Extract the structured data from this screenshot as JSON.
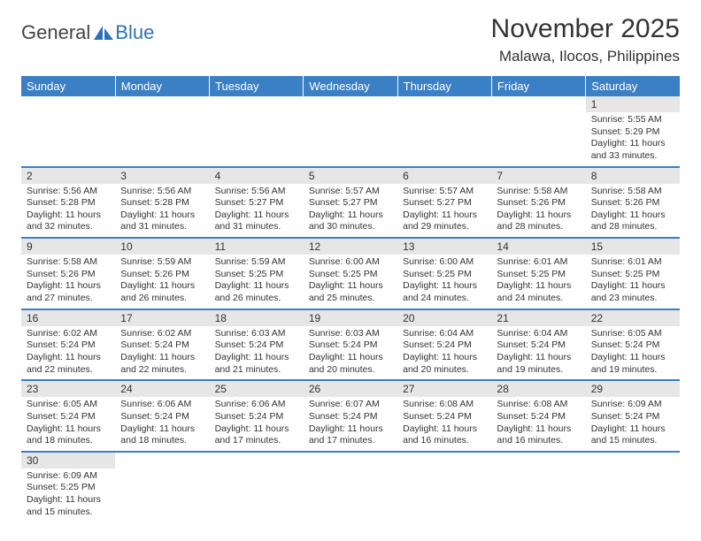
{
  "logo": {
    "general": "General",
    "blue": "Blue"
  },
  "title": "November 2025",
  "location": "Malawa, Ilocos, Philippines",
  "colors": {
    "header_bg": "#3b7fc4",
    "header_text": "#ffffff",
    "daynum_bg": "#e6e6e6",
    "border": "#3b7fc4",
    "body_text": "#333333",
    "logo_blue": "#2d72b8"
  },
  "weekdays": [
    "Sunday",
    "Monday",
    "Tuesday",
    "Wednesday",
    "Thursday",
    "Friday",
    "Saturday"
  ],
  "weeks": [
    [
      null,
      null,
      null,
      null,
      null,
      null,
      {
        "n": "1",
        "sr": "Sunrise: 5:55 AM",
        "ss": "Sunset: 5:29 PM",
        "dl1": "Daylight: 11 hours",
        "dl2": "and 33 minutes."
      }
    ],
    [
      {
        "n": "2",
        "sr": "Sunrise: 5:56 AM",
        "ss": "Sunset: 5:28 PM",
        "dl1": "Daylight: 11 hours",
        "dl2": "and 32 minutes."
      },
      {
        "n": "3",
        "sr": "Sunrise: 5:56 AM",
        "ss": "Sunset: 5:28 PM",
        "dl1": "Daylight: 11 hours",
        "dl2": "and 31 minutes."
      },
      {
        "n": "4",
        "sr": "Sunrise: 5:56 AM",
        "ss": "Sunset: 5:27 PM",
        "dl1": "Daylight: 11 hours",
        "dl2": "and 31 minutes."
      },
      {
        "n": "5",
        "sr": "Sunrise: 5:57 AM",
        "ss": "Sunset: 5:27 PM",
        "dl1": "Daylight: 11 hours",
        "dl2": "and 30 minutes."
      },
      {
        "n": "6",
        "sr": "Sunrise: 5:57 AM",
        "ss": "Sunset: 5:27 PM",
        "dl1": "Daylight: 11 hours",
        "dl2": "and 29 minutes."
      },
      {
        "n": "7",
        "sr": "Sunrise: 5:58 AM",
        "ss": "Sunset: 5:26 PM",
        "dl1": "Daylight: 11 hours",
        "dl2": "and 28 minutes."
      },
      {
        "n": "8",
        "sr": "Sunrise: 5:58 AM",
        "ss": "Sunset: 5:26 PM",
        "dl1": "Daylight: 11 hours",
        "dl2": "and 28 minutes."
      }
    ],
    [
      {
        "n": "9",
        "sr": "Sunrise: 5:58 AM",
        "ss": "Sunset: 5:26 PM",
        "dl1": "Daylight: 11 hours",
        "dl2": "and 27 minutes."
      },
      {
        "n": "10",
        "sr": "Sunrise: 5:59 AM",
        "ss": "Sunset: 5:26 PM",
        "dl1": "Daylight: 11 hours",
        "dl2": "and 26 minutes."
      },
      {
        "n": "11",
        "sr": "Sunrise: 5:59 AM",
        "ss": "Sunset: 5:25 PM",
        "dl1": "Daylight: 11 hours",
        "dl2": "and 26 minutes."
      },
      {
        "n": "12",
        "sr": "Sunrise: 6:00 AM",
        "ss": "Sunset: 5:25 PM",
        "dl1": "Daylight: 11 hours",
        "dl2": "and 25 minutes."
      },
      {
        "n": "13",
        "sr": "Sunrise: 6:00 AM",
        "ss": "Sunset: 5:25 PM",
        "dl1": "Daylight: 11 hours",
        "dl2": "and 24 minutes."
      },
      {
        "n": "14",
        "sr": "Sunrise: 6:01 AM",
        "ss": "Sunset: 5:25 PM",
        "dl1": "Daylight: 11 hours",
        "dl2": "and 24 minutes."
      },
      {
        "n": "15",
        "sr": "Sunrise: 6:01 AM",
        "ss": "Sunset: 5:25 PM",
        "dl1": "Daylight: 11 hours",
        "dl2": "and 23 minutes."
      }
    ],
    [
      {
        "n": "16",
        "sr": "Sunrise: 6:02 AM",
        "ss": "Sunset: 5:24 PM",
        "dl1": "Daylight: 11 hours",
        "dl2": "and 22 minutes."
      },
      {
        "n": "17",
        "sr": "Sunrise: 6:02 AM",
        "ss": "Sunset: 5:24 PM",
        "dl1": "Daylight: 11 hours",
        "dl2": "and 22 minutes."
      },
      {
        "n": "18",
        "sr": "Sunrise: 6:03 AM",
        "ss": "Sunset: 5:24 PM",
        "dl1": "Daylight: 11 hours",
        "dl2": "and 21 minutes."
      },
      {
        "n": "19",
        "sr": "Sunrise: 6:03 AM",
        "ss": "Sunset: 5:24 PM",
        "dl1": "Daylight: 11 hours",
        "dl2": "and 20 minutes."
      },
      {
        "n": "20",
        "sr": "Sunrise: 6:04 AM",
        "ss": "Sunset: 5:24 PM",
        "dl1": "Daylight: 11 hours",
        "dl2": "and 20 minutes."
      },
      {
        "n": "21",
        "sr": "Sunrise: 6:04 AM",
        "ss": "Sunset: 5:24 PM",
        "dl1": "Daylight: 11 hours",
        "dl2": "and 19 minutes."
      },
      {
        "n": "22",
        "sr": "Sunrise: 6:05 AM",
        "ss": "Sunset: 5:24 PM",
        "dl1": "Daylight: 11 hours",
        "dl2": "and 19 minutes."
      }
    ],
    [
      {
        "n": "23",
        "sr": "Sunrise: 6:05 AM",
        "ss": "Sunset: 5:24 PM",
        "dl1": "Daylight: 11 hours",
        "dl2": "and 18 minutes."
      },
      {
        "n": "24",
        "sr": "Sunrise: 6:06 AM",
        "ss": "Sunset: 5:24 PM",
        "dl1": "Daylight: 11 hours",
        "dl2": "and 18 minutes."
      },
      {
        "n": "25",
        "sr": "Sunrise: 6:06 AM",
        "ss": "Sunset: 5:24 PM",
        "dl1": "Daylight: 11 hours",
        "dl2": "and 17 minutes."
      },
      {
        "n": "26",
        "sr": "Sunrise: 6:07 AM",
        "ss": "Sunset: 5:24 PM",
        "dl1": "Daylight: 11 hours",
        "dl2": "and 17 minutes."
      },
      {
        "n": "27",
        "sr": "Sunrise: 6:08 AM",
        "ss": "Sunset: 5:24 PM",
        "dl1": "Daylight: 11 hours",
        "dl2": "and 16 minutes."
      },
      {
        "n": "28",
        "sr": "Sunrise: 6:08 AM",
        "ss": "Sunset: 5:24 PM",
        "dl1": "Daylight: 11 hours",
        "dl2": "and 16 minutes."
      },
      {
        "n": "29",
        "sr": "Sunrise: 6:09 AM",
        "ss": "Sunset: 5:24 PM",
        "dl1": "Daylight: 11 hours",
        "dl2": "and 15 minutes."
      }
    ],
    [
      {
        "n": "30",
        "sr": "Sunrise: 6:09 AM",
        "ss": "Sunset: 5:25 PM",
        "dl1": "Daylight: 11 hours",
        "dl2": "and 15 minutes."
      },
      null,
      null,
      null,
      null,
      null,
      null
    ]
  ]
}
